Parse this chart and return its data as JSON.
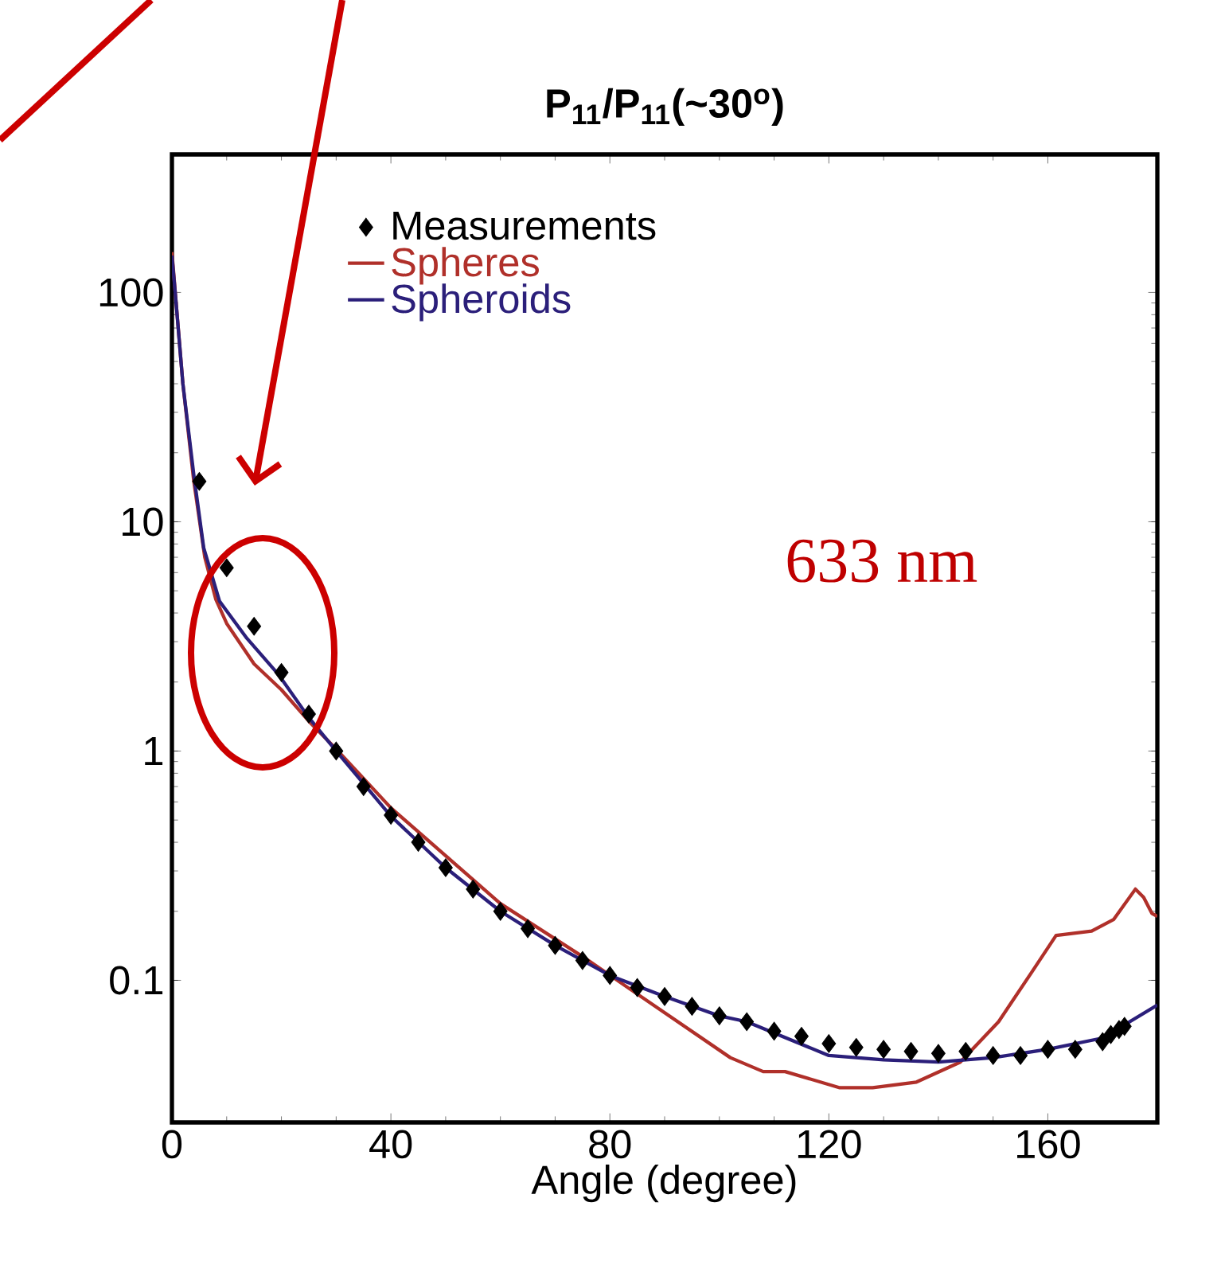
{
  "chart_data": {
    "type": "line",
    "title": "P$_{11}$/P$_{11}$(~30$^{o}$)",
    "xlabel": "Angle (degree)",
    "xlim": [
      0,
      180
    ],
    "xticks": [
      0,
      40,
      80,
      120,
      160
    ],
    "ylim": [
      0.024,
      400
    ],
    "yticks": [
      0.1,
      1,
      10,
      100
    ],
    "log": "y",
    "legend": "top left",
    "annotations": [
      "633 nm"
    ],
    "series": [
      {
        "name": "Measurements",
        "type": "scatter",
        "marker": "diamond",
        "color": "#000000",
        "x": [
          5,
          10,
          15,
          20,
          25,
          30,
          35,
          40,
          45,
          50,
          55,
          60,
          65,
          70,
          75,
          80,
          85,
          90,
          95,
          100,
          105,
          110,
          115,
          120,
          125,
          130,
          135,
          140,
          145,
          150,
          155,
          160,
          165,
          170,
          171.5,
          173,
          174
        ],
        "values": [
          15,
          6.3,
          3.5,
          2.2,
          1.45,
          1.0,
          0.7,
          0.525,
          0.4,
          0.31,
          0.25,
          0.2,
          0.168,
          0.142,
          0.122,
          0.105,
          0.093,
          0.085,
          0.077,
          0.07,
          0.066,
          0.06,
          0.057,
          0.053,
          0.051,
          0.05,
          0.049,
          0.048,
          0.049,
          0.047,
          0.047,
          0.05,
          0.05,
          0.054,
          0.058,
          0.061,
          0.063
        ]
      },
      {
        "name": "Spheres",
        "color": "#b0302a",
        "x": [
          0,
          2,
          4,
          6,
          8,
          10,
          15,
          20,
          25,
          30,
          40,
          60,
          75,
          89,
          102,
          108,
          112,
          122,
          128,
          136,
          144,
          151,
          157,
          161.5,
          168,
          172,
          176,
          177.5,
          179,
          180
        ],
        "values": [
          150,
          40,
          15,
          7,
          4.6,
          3.6,
          2.4,
          1.85,
          1.35,
          1.02,
          0.565,
          0.216,
          0.127,
          0.075,
          0.046,
          0.04,
          0.04,
          0.034,
          0.034,
          0.036,
          0.044,
          0.066,
          0.108,
          0.157,
          0.164,
          0.184,
          0.25,
          0.23,
          0.196,
          0.19
        ]
      },
      {
        "name": "Spheroids",
        "color": "#2b1f7a",
        "x": [
          0,
          0.6,
          2,
          4,
          5.8,
          8.7,
          13.7,
          19.5,
          25,
          30,
          40,
          50,
          60,
          70,
          80,
          90,
          100,
          105,
          120,
          130,
          140,
          150,
          160,
          170,
          180
        ],
        "values": [
          145,
          100,
          40,
          16,
          7.7,
          4.5,
          3.1,
          2.15,
          1.4,
          1.0,
          0.52,
          0.31,
          0.2,
          0.142,
          0.105,
          0.085,
          0.07,
          0.066,
          0.047,
          0.045,
          0.044,
          0.046,
          0.05,
          0.056,
          0.078
        ]
      }
    ]
  }
}
